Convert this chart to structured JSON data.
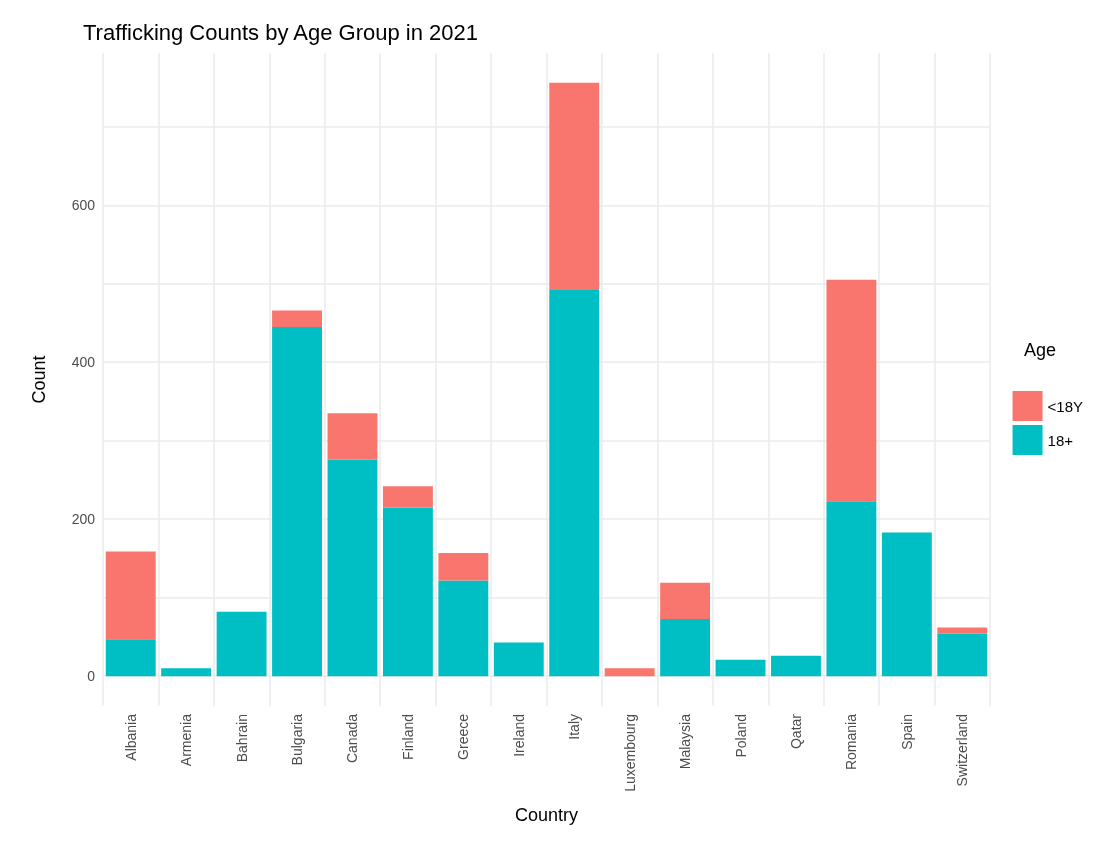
{
  "chart_data": {
    "type": "bar",
    "title": "Trafficking Counts by Age Group in 2021",
    "xlabel": "Country",
    "ylabel": "Count",
    "legend_title": "Age",
    "categories": [
      "Albania",
      "Armenia",
      "Bahrain",
      "Bulgaria",
      "Canada",
      "Finland",
      "Greece",
      "Ireland",
      "Italy",
      "Luxembourg",
      "Malaysia",
      "Poland",
      "Qatar",
      "Romania",
      "Spain",
      "Switzerland"
    ],
    "stacked": true,
    "series": [
      {
        "name": "18+",
        "color": "#00bfc4",
        "values": [
          47,
          10,
          82,
          445,
          276,
          215,
          122,
          43,
          492,
          0,
          73,
          21,
          26,
          223,
          183,
          54
        ]
      },
      {
        "name": "<18Y",
        "color": "#f8766d",
        "values": [
          112,
          0,
          0,
          21,
          59,
          27,
          35,
          0,
          264,
          10,
          46,
          0,
          0,
          282,
          0,
          8
        ]
      }
    ],
    "ylim": [
      -38,
      794
    ],
    "yticks": [
      0,
      {
        "value": 100,
        "label": null
      },
      200,
      {
        "value": 300,
        "label": null
      },
      400,
      {
        "value": 500,
        "label": null
      },
      600,
      {
        "value": 700,
        "label": null
      }
    ],
    "grid": true,
    "legend": "right"
  }
}
